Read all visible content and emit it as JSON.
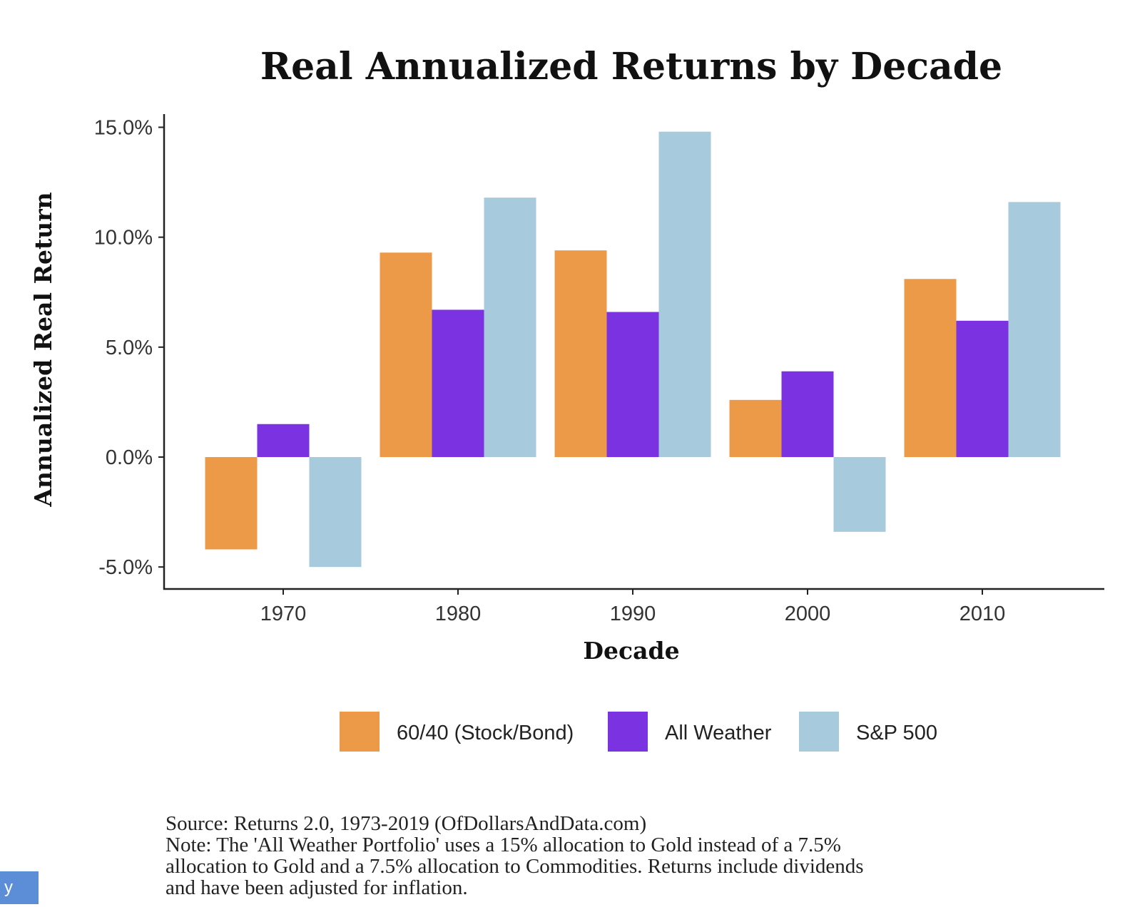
{
  "chart_data": {
    "type": "bar",
    "title": "Real Annualized Returns by Decade",
    "xlabel": "Decade",
    "ylabel": "Annualized Real Return",
    "categories": [
      "1970",
      "1980",
      "1990",
      "2000",
      "2010"
    ],
    "series": [
      {
        "name": "60/40 (Stock/Bond)",
        "color": "#ec9a48",
        "values": [
          -4.2,
          9.3,
          9.4,
          2.6,
          8.1
        ]
      },
      {
        "name": "All Weather",
        "color": "#7b32e0",
        "values": [
          1.5,
          6.7,
          6.6,
          3.9,
          6.2
        ]
      },
      {
        "name": "S&P 500",
        "color": "#a8cadd",
        "values": [
          -5.0,
          11.8,
          14.8,
          -3.4,
          11.6
        ]
      }
    ],
    "ylim": [
      -6.0,
      15.6
    ],
    "yticks": [
      15.0,
      10.0,
      5.0,
      0.0,
      -5.0
    ],
    "ytick_labels": [
      "15.0%",
      "10.0%",
      "5.0%",
      "0.0%",
      "-5.0%"
    ],
    "grid": false,
    "legend_position": "bottom"
  },
  "footnote": {
    "source": "Source:  Returns 2.0, 1973-2019 (OfDollarsAndData.com)",
    "note_lines": [
      "Note: The 'All Weather Portfolio' uses a 15% allocation to Gold instead of a 7.5%",
      "allocation to Gold and a 7.5% allocation to Commodities. Returns include dividends",
      "and have been adjusted for inflation."
    ]
  },
  "corner_badge": {
    "text": "y",
    "color": "#5b8ed6"
  }
}
